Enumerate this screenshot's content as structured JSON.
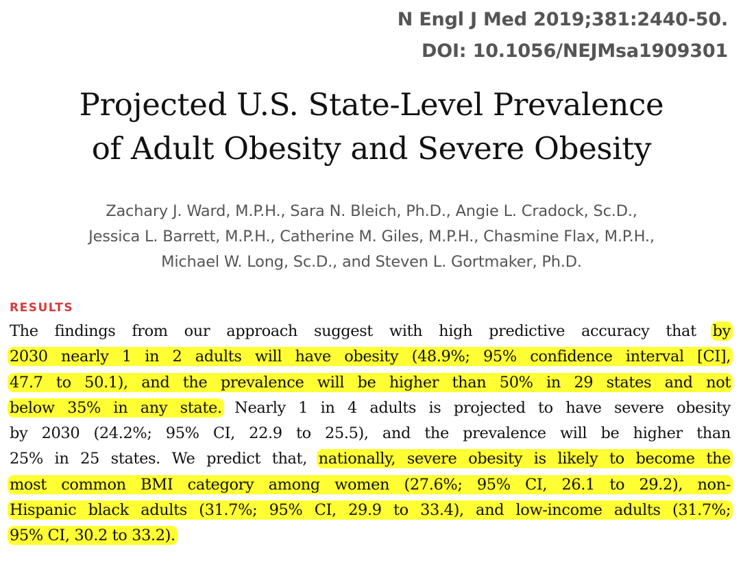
{
  "citation": {
    "journal_line": "N Engl J Med 2019;381:2440-50.",
    "doi_line": "DOI: 10.1056/NEJMsa1909301"
  },
  "title": {
    "line1": "Projected U.S. State-Level Prevalence",
    "line2": "of Adult Obesity and Severe Obesity"
  },
  "authors": {
    "line1": "Zachary J. Ward, M.P.H., Sara N. Bleich, Ph.D., Angie L. Cradock, Sc.D.,",
    "line2": "Jessica L. Barrett, M.P.H., Catherine M. Giles, M.P.H., Chasmine Flax, M.P.H.,",
    "line3": "Michael W. Long, Sc.D., and Steven L. Gortmaker, Ph.D."
  },
  "results": {
    "heading": "RESULTS",
    "highlight_color": "#ffff33",
    "heading_color": "#d63a3a",
    "lines": [
      {
        "plain_before": "The findings from our approach suggest with high predictive accuracy that ",
        "highlight": "by",
        "plain_after": ""
      },
      {
        "plain_before": "",
        "highlight": "2030 nearly 1 in 2 adults will have obesity (48.9%; 95% confidence interval [CI],",
        "plain_after": ""
      },
      {
        "plain_before": "",
        "highlight": "47.7 to 50.1), and the prevalence will be higher than 50% in 29 states and not",
        "plain_after": ""
      },
      {
        "plain_before": "",
        "highlight": "below 35% in any state.",
        "plain_after": " Nearly 1 in 4 adults is projected to have severe obesity"
      },
      {
        "plain_before": "by 2030 (24.2%; 95% CI, 22.9 to 25.5), and the prevalence will be higher than",
        "highlight": "",
        "plain_after": ""
      },
      {
        "plain_before": "25% in 25 states. We predict that, ",
        "highlight": "nationally, severe obesity is likely to become the",
        "plain_after": ""
      },
      {
        "plain_before": "",
        "highlight": "most common BMI category among women (27.6%; 95% CI, 26.1 to 29.2), non-",
        "plain_after": ""
      },
      {
        "plain_before": "",
        "highlight": "Hispanic black adults (31.7%; 95% CI, 29.9 to 33.4), and low-income adults (31.7%;",
        "plain_after": ""
      },
      {
        "plain_before": "",
        "highlight": "95% CI, 30.2 to 33.2).",
        "plain_after": ""
      }
    ]
  }
}
